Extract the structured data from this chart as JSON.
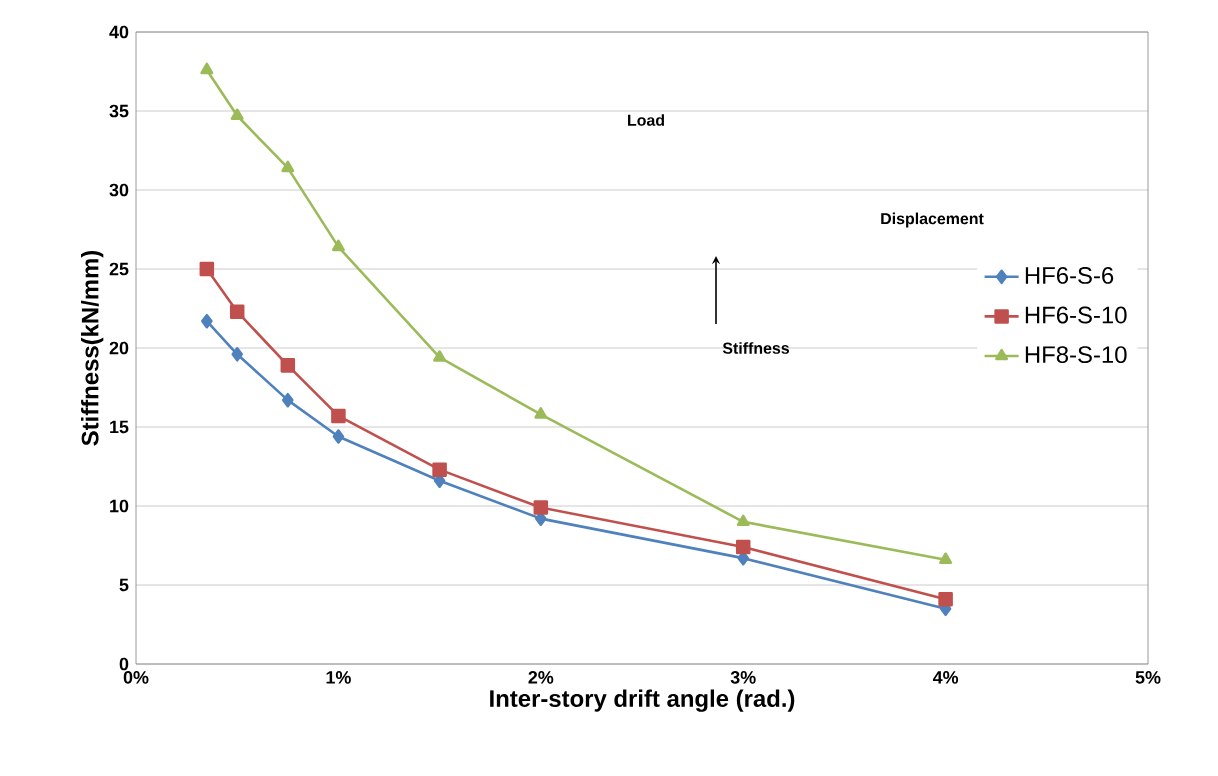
{
  "chart_data": {
    "type": "line",
    "xlabel": "Inter-story drift angle (rad.)",
    "ylabel": "Stiffness(kN/mm)",
    "x": [
      0.35,
      0.5,
      0.75,
      1,
      1.5,
      2,
      3,
      4
    ],
    "series": [
      {
        "name": "HF6-S-6",
        "color": "#4f81bd",
        "marker": "diamond",
        "values": [
          21.7,
          19.6,
          16.7,
          14.4,
          11.6,
          9.2,
          6.7,
          3.5
        ]
      },
      {
        "name": "HF6-S-10",
        "color": "#c0504d",
        "marker": "square",
        "values": [
          25.0,
          22.3,
          18.9,
          15.7,
          12.3,
          9.9,
          7.4,
          4.1
        ]
      },
      {
        "name": "HF8-S-10",
        "color": "#9bbb59",
        "marker": "triangle",
        "values": [
          37.6,
          34.7,
          31.4,
          26.4,
          19.4,
          15.8,
          9.0,
          6.6
        ]
      }
    ],
    "xlim": [
      0,
      5
    ],
    "ylim": [
      0,
      40
    ],
    "xticks": [
      {
        "value": 0,
        "label": "0%"
      },
      {
        "value": 1,
        "label": "1%"
      },
      {
        "value": 2,
        "label": "2%"
      },
      {
        "value": 3,
        "label": "3%"
      },
      {
        "value": 4,
        "label": "4%"
      },
      {
        "value": 5,
        "label": "5%"
      }
    ],
    "yticks": [
      0,
      5,
      10,
      15,
      20,
      25,
      30,
      35,
      40
    ],
    "grid": "y",
    "legend": "right",
    "annotations": [
      "Load",
      "Displacement",
      "Stiffness"
    ]
  }
}
